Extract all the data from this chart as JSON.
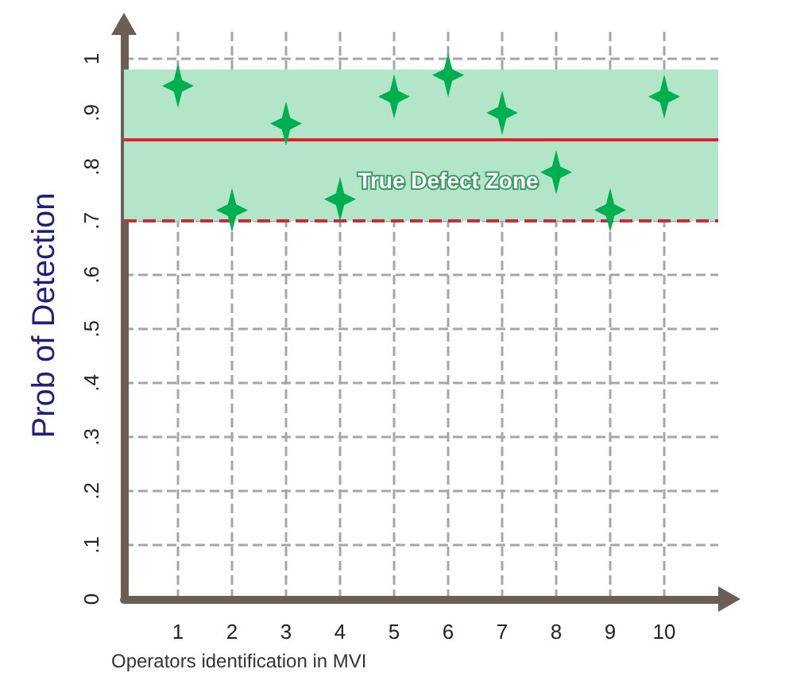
{
  "chart_data": {
    "type": "scatter",
    "ylabel": "Prob of Detection",
    "xlabel": "Operators identification in MVI",
    "x": [
      1,
      2,
      3,
      4,
      5,
      6,
      7,
      8,
      9,
      10
    ],
    "series": [
      {
        "color": "#00b050",
        "values": [
          0.95,
          0.72,
          0.88,
          0.74,
          0.93,
          0.97,
          0.9,
          0.79,
          0.72,
          0.93
        ]
      }
    ],
    "xlim": [
      0,
      11
    ],
    "xticks": [
      1,
      2,
      3,
      4,
      5,
      6,
      7,
      8,
      9,
      10
    ],
    "ylim": [
      0,
      1.05
    ],
    "yticks": [
      0,
      {
        "value": 0.1,
        "label": ".1"
      },
      {
        "value": 0.2,
        "label": ".2"
      },
      {
        "value": 0.3,
        "label": ".3"
      },
      {
        "value": 0.4,
        "label": ".4"
      },
      {
        "value": 0.5,
        "label": ".5"
      },
      {
        "value": 0.6,
        "label": ".6"
      },
      {
        "value": 0.7,
        "label": ".7"
      },
      {
        "value": 0.8,
        "label": ".8"
      },
      {
        "value": 0.9,
        "label": ".9"
      },
      1
    ],
    "bands": [
      {
        "axis": "y",
        "from": 0.7,
        "to": 0.98,
        "label": "True Defect Zone",
        "color": "#b3e6c8"
      }
    ],
    "ref_lines": [
      {
        "axis": "y",
        "value": 0.85,
        "color": "#e0202f",
        "line_style": "solid"
      },
      {
        "axis": "y",
        "value": 0.7,
        "color": "#c0303a",
        "line_style": "dashed"
      }
    ],
    "grid": true,
    "marker": "star"
  }
}
